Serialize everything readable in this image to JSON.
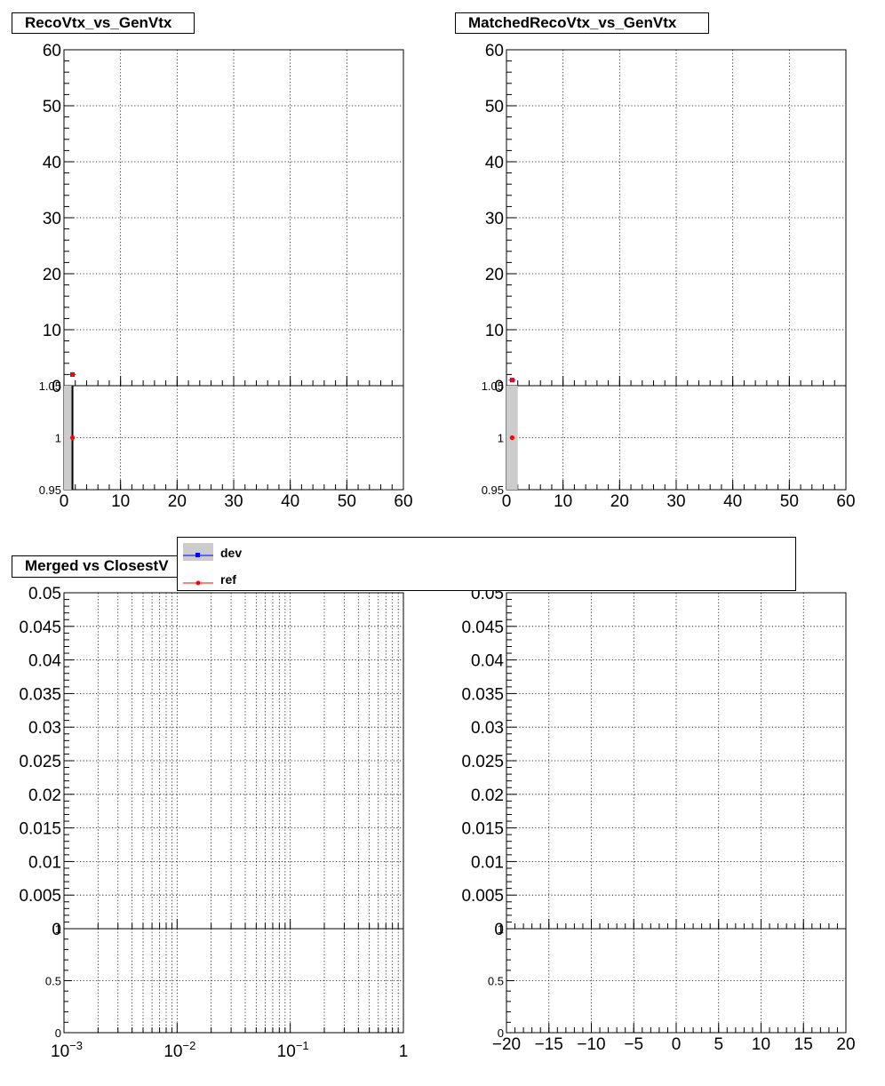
{
  "panels": {
    "top_left": {
      "title": "RecoVtx_vs_GenVtx"
    },
    "top_right": {
      "title": "MatchedRecoVtx_vs_GenVtx"
    },
    "bottom_left": {
      "title": "Merged vs ClosestV"
    }
  },
  "legend": {
    "entries": [
      {
        "label": "dev",
        "color": "#0000ff",
        "marker": "square",
        "fill": "#cccccc"
      },
      {
        "label": "ref",
        "color": "#ff0000",
        "marker": "circle"
      }
    ]
  },
  "colors": {
    "dev": "#0000ff",
    "ref": "#ff0000",
    "band": "#cccccc"
  },
  "chart_data": [
    {
      "type": "scatter",
      "title": "RecoVtx_vs_GenVtx",
      "xlim": [
        0,
        60
      ],
      "main": {
        "ylim": [
          0,
          60
        ],
        "ytick_labels": [
          "0",
          "10",
          "20",
          "30",
          "40",
          "50",
          "60"
        ],
        "series": [
          {
            "name": "dev",
            "x": [
              1.5
            ],
            "y": [
              2
            ]
          },
          {
            "name": "ref",
            "x": [
              1.5
            ],
            "y": [
              2
            ]
          }
        ]
      },
      "ratio": {
        "ylim": [
          0.95,
          1.05
        ],
        "ytick_labels": [
          "0.95",
          "1",
          "1.05"
        ],
        "points": [
          {
            "x": 1.5,
            "y": 1
          }
        ],
        "band": {
          "x": [
            0,
            1.5
          ]
        }
      },
      "xtick_labels": [
        "0",
        "10",
        "20",
        "30",
        "40",
        "50",
        "60"
      ],
      "grid": true
    },
    {
      "type": "scatter",
      "title": "MatchedRecoVtx_vs_GenVtx",
      "xlim": [
        0,
        60
      ],
      "main": {
        "ylim": [
          0,
          60
        ],
        "ytick_labels": [
          "0",
          "10",
          "20",
          "30",
          "40",
          "50",
          "60"
        ],
        "series": [
          {
            "name": "dev",
            "x": [
              1
            ],
            "y": [
              1
            ]
          },
          {
            "name": "ref",
            "x": [
              1
            ],
            "y": [
              1
            ]
          }
        ]
      },
      "ratio": {
        "ylim": [
          0.95,
          1.05
        ],
        "ytick_labels": [
          "0.95",
          "1",
          "1.05"
        ],
        "points": [
          {
            "x": 1,
            "y": 1
          }
        ],
        "band": {
          "x": [
            0,
            2
          ]
        }
      },
      "xtick_labels": [
        "0",
        "10",
        "20",
        "30",
        "40",
        "50",
        "60"
      ],
      "grid": true
    },
    {
      "type": "scatter",
      "title": "Merged vs ClosestV",
      "xscale": "log",
      "xlim": [
        0.001,
        1
      ],
      "main": {
        "ylim": [
          0,
          0.05
        ],
        "ytick_labels": [
          "0",
          "0.005",
          "0.01",
          "0.015",
          "0.02",
          "0.025",
          "0.03",
          "0.035",
          "0.04",
          "0.045",
          "0.05"
        ],
        "series": []
      },
      "ratio": {
        "ylim": [
          0,
          1
        ],
        "ytick_labels": [
          "0",
          "0.5",
          "1"
        ]
      },
      "xtick_labels": [
        "10−3",
        "10−2",
        "10−1",
        "1"
      ],
      "grid": true
    },
    {
      "type": "scatter",
      "xlim": [
        -20,
        20
      ],
      "main": {
        "ylim": [
          0,
          0.05
        ],
        "ytick_labels": [
          "0",
          "0.005",
          "0.01",
          "0.015",
          "0.02",
          "0.025",
          "0.03",
          "0.035",
          "0.04",
          "0.045",
          "0.05"
        ],
        "series": []
      },
      "ratio": {
        "ylim": [
          0,
          1
        ],
        "ytick_labels": [
          "0",
          "0.5",
          "1"
        ]
      },
      "xtick_labels": [
        "−20",
        "−15",
        "−10",
        "−5",
        "0",
        "5",
        "10",
        "15",
        "20"
      ],
      "grid": true
    }
  ]
}
